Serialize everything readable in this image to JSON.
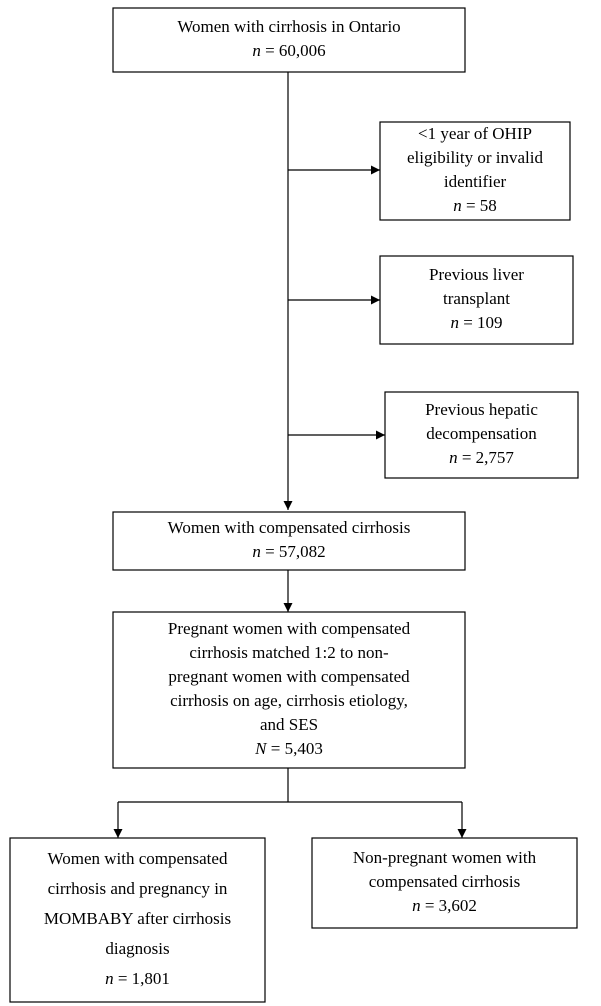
{
  "nodes": [
    {
      "lines": [
        "Women with cirrhosis in Ontario"
      ],
      "count": {
        "symbol": "n",
        "text": " = 60,006"
      }
    },
    {
      "lines": [
        "<1 year of OHIP",
        "eligibility or invalid",
        "identifier"
      ],
      "count": {
        "symbol": "n",
        "text": " = 58"
      }
    },
    {
      "lines": [
        "Previous liver",
        "transplant"
      ],
      "count": {
        "symbol": "n",
        "text": " = 109"
      }
    },
    {
      "lines": [
        "Previous hepatic",
        "decompensation"
      ],
      "count": {
        "symbol": "n",
        "text": " = 2,757"
      }
    },
    {
      "lines": [
        "Women with compensated cirrhosis"
      ],
      "count": {
        "symbol": "n",
        "text": " = 57,082"
      }
    },
    {
      "lines": [
        "Pregnant women with compensated",
        "cirrhosis matched 1:2 to non-",
        "pregnant women with compensated",
        "cirrhosis on age, cirrhosis etiology,",
        "and SES"
      ],
      "count": {
        "symbol": "N",
        "text": " = 5,403"
      }
    },
    {
      "lines": [
        "Women with compensated",
        "cirrhosis and pregnancy in",
        "MOMBABY after cirrhosis",
        "diagnosis"
      ],
      "count": {
        "symbol": "n",
        "text": " = 1,801"
      }
    },
    {
      "lines": [
        "Non-pregnant women with",
        "compensated cirrhosis"
      ],
      "count": {
        "symbol": "n",
        "text": " = 3,602"
      }
    }
  ]
}
